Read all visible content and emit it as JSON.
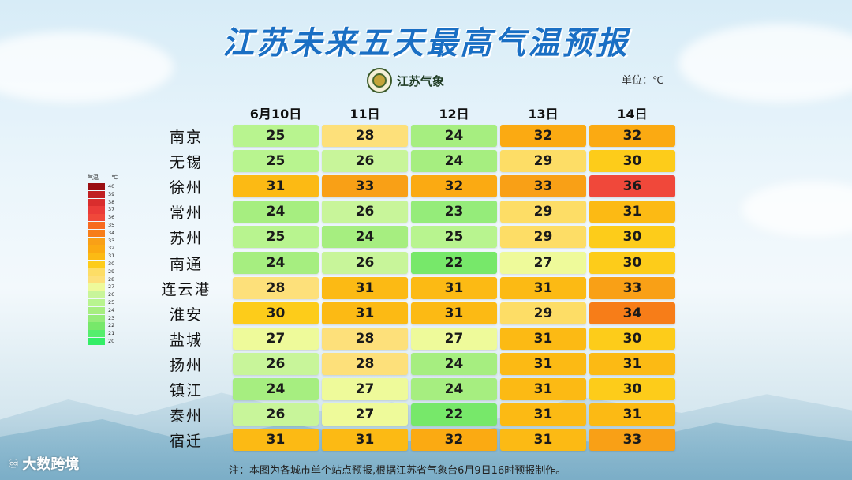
{
  "title": "江苏未来五天最高气温预报",
  "logo_text": "江苏气象",
  "unit": "单位：℃",
  "note": "注：本图为各城市单个站点预报,根据江苏省气象台6月9日16时预报制作。",
  "watermark": "大数跨境",
  "legend": {
    "header_left": "气温",
    "header_right": "℃",
    "levels": [
      40,
      39,
      38,
      37,
      36,
      35,
      34,
      33,
      32,
      31,
      30,
      29,
      28,
      27,
      26,
      25,
      24,
      23,
      22,
      21,
      20
    ]
  },
  "chart_data": {
    "type": "table",
    "title": "江苏未来五天最高气温预报",
    "columns": [
      "6月10日",
      "11日",
      "12日",
      "13日",
      "14日"
    ],
    "rows": [
      {
        "city": "南京",
        "values": [
          25,
          28,
          24,
          32,
          32
        ]
      },
      {
        "city": "无锡",
        "values": [
          25,
          26,
          24,
          29,
          30
        ]
      },
      {
        "city": "徐州",
        "values": [
          31,
          33,
          32,
          33,
          36
        ]
      },
      {
        "city": "常州",
        "values": [
          24,
          26,
          23,
          29,
          31
        ]
      },
      {
        "city": "苏州",
        "values": [
          25,
          24,
          25,
          29,
          30
        ]
      },
      {
        "city": "南通",
        "values": [
          24,
          26,
          22,
          27,
          30
        ]
      },
      {
        "city": "连云港",
        "values": [
          28,
          31,
          31,
          31,
          33
        ]
      },
      {
        "city": "淮安",
        "values": [
          30,
          31,
          31,
          29,
          34
        ]
      },
      {
        "city": "盐城",
        "values": [
          27,
          28,
          27,
          31,
          30
        ]
      },
      {
        "city": "扬州",
        "values": [
          26,
          28,
          24,
          31,
          31
        ]
      },
      {
        "city": "镇江",
        "values": [
          24,
          27,
          24,
          31,
          30
        ]
      },
      {
        "city": "泰州",
        "values": [
          26,
          27,
          22,
          31,
          31
        ]
      },
      {
        "city": "宿迁",
        "values": [
          31,
          31,
          32,
          31,
          33
        ]
      }
    ],
    "color_scale": {
      "20": "#33ee66",
      "21": "#55ee6e",
      "22": "#77e86a",
      "23": "#95ec7a",
      "24": "#a6ee80",
      "25": "#b8f48f",
      "26": "#c8f59a",
      "27": "#eefa9a",
      "28": "#fde07a",
      "29": "#fddd66",
      "30": "#fdcc1a",
      "31": "#fcba14",
      "32": "#fbaa12",
      "33": "#f9a016",
      "34": "#f77d18",
      "35": "#f76a1f",
      "36": "#f0483a",
      "37": "#ea3b38",
      "38": "#d92d2d",
      "39": "#c01f22",
      "40": "#9a0e12"
    }
  }
}
